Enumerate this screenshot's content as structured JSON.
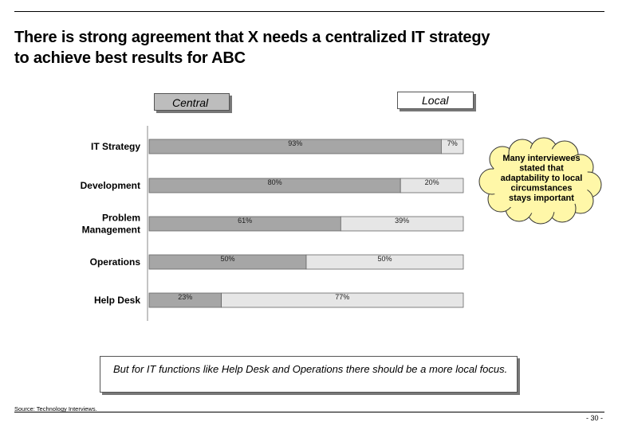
{
  "title_line1": "There is strong agreement that X needs a centralized IT strategy",
  "title_line2": "to achieve best results for ABC",
  "legend": {
    "central": "Central",
    "local": "Local"
  },
  "colors": {
    "central": "#a6a6a6",
    "local": "#e6e6e6"
  },
  "chart_data": {
    "type": "bar",
    "orientation": "horizontal",
    "stacked": true,
    "unit": "%",
    "categories": [
      "IT Strategy",
      "Development",
      "Problem Management",
      "Operations",
      "Help Desk"
    ],
    "category_lines": [
      [
        "IT Strategy"
      ],
      [
        "Development"
      ],
      [
        "Problem",
        "Management"
      ],
      [
        "Operations"
      ],
      [
        "Help Desk"
      ]
    ],
    "series": [
      {
        "name": "Central",
        "values": [
          93,
          80,
          61,
          50,
          23
        ],
        "labels": [
          "93%",
          "80%",
          "61%",
          "50%",
          "23%"
        ]
      },
      {
        "name": "Local",
        "values": [
          7,
          20,
          39,
          50,
          77
        ],
        "labels": [
          "7%",
          "20%",
          "39%",
          "50%",
          "77%"
        ]
      }
    ],
    "xlim": [
      0,
      100
    ],
    "grid": false,
    "legend_position": "top"
  },
  "callout_lines": [
    "Many interviewees",
    "stated that",
    "adaptability to local",
    "circumstances",
    "stays important"
  ],
  "note": "But for IT functions like Help Desk and Operations there should be a more local focus.",
  "source": "Source: Technology Interviews.",
  "page_number": "- 30 -"
}
